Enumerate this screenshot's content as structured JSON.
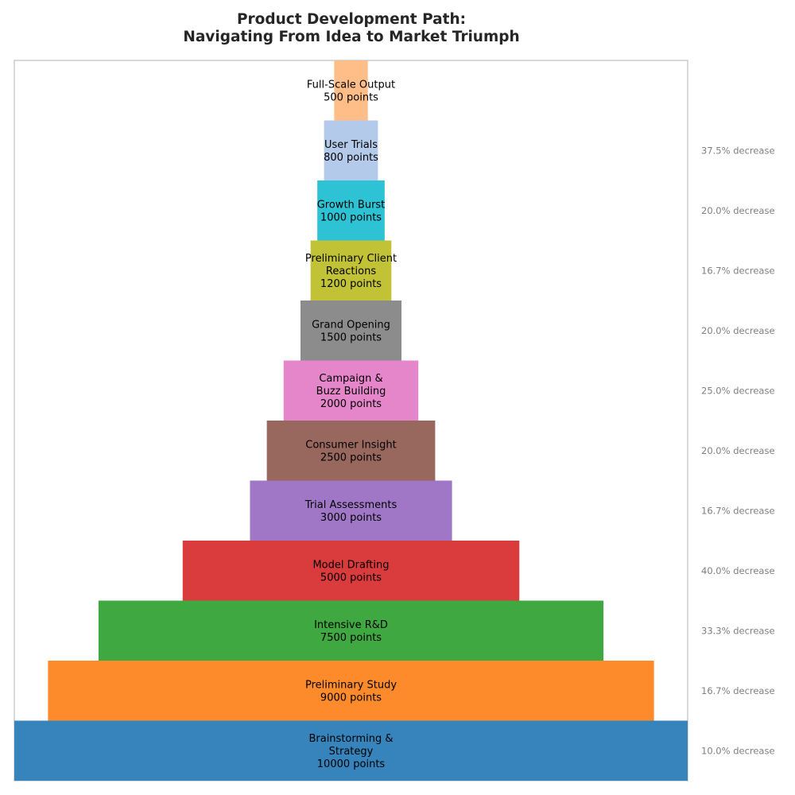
{
  "chart_data": {
    "type": "funnel",
    "title_lines": [
      "Product Development Path:",
      "Navigating From Idea to Market Triumph"
    ],
    "unit_suffix": "points",
    "stages": [
      {
        "label_lines": [
          "Brainstorming &",
          "Strategy"
        ],
        "value": 10000,
        "color": "#3783bb"
      },
      {
        "label_lines": [
          "Preliminary Study"
        ],
        "value": 9000,
        "color": "#fd8b2b"
      },
      {
        "label_lines": [
          "Intensive R&D"
        ],
        "value": 7500,
        "color": "#40a840"
      },
      {
        "label_lines": [
          "Model Drafting"
        ],
        "value": 5000,
        "color": "#da3b3c"
      },
      {
        "label_lines": [
          "Trial Assessments"
        ],
        "value": 3000,
        "color": "#a077c6"
      },
      {
        "label_lines": [
          "Consumer Insight"
        ],
        "value": 2500,
        "color": "#98675e"
      },
      {
        "label_lines": [
          "Campaign &",
          "Buzz Building"
        ],
        "value": 2000,
        "color": "#e586cb"
      },
      {
        "label_lines": [
          "Grand Opening"
        ],
        "value": 1500,
        "color": "#8c8c8c"
      },
      {
        "label_lines": [
          "Preliminary Client",
          "Reactions"
        ],
        "value": 1200,
        "color": "#c2c236"
      },
      {
        "label_lines": [
          "Growth Burst"
        ],
        "value": 1000,
        "color": "#2ec3d4"
      },
      {
        "label_lines": [
          "User Trials"
        ],
        "value": 800,
        "color": "#b4caea"
      },
      {
        "label_lines": [
          "Full-Scale Output"
        ],
        "value": 500,
        "color": "#ffbe87"
      }
    ],
    "decreases": [
      "10.0% decrease",
      "16.7% decrease",
      "33.3% decrease",
      "40.0% decrease",
      "16.7% decrease",
      "20.0% decrease",
      "25.0% decrease",
      "20.0% decrease",
      "16.7% decrease",
      "20.0% decrease",
      "37.5% decrease"
    ],
    "frame_color": "#cccccc",
    "decrease_color": "#808080"
  }
}
